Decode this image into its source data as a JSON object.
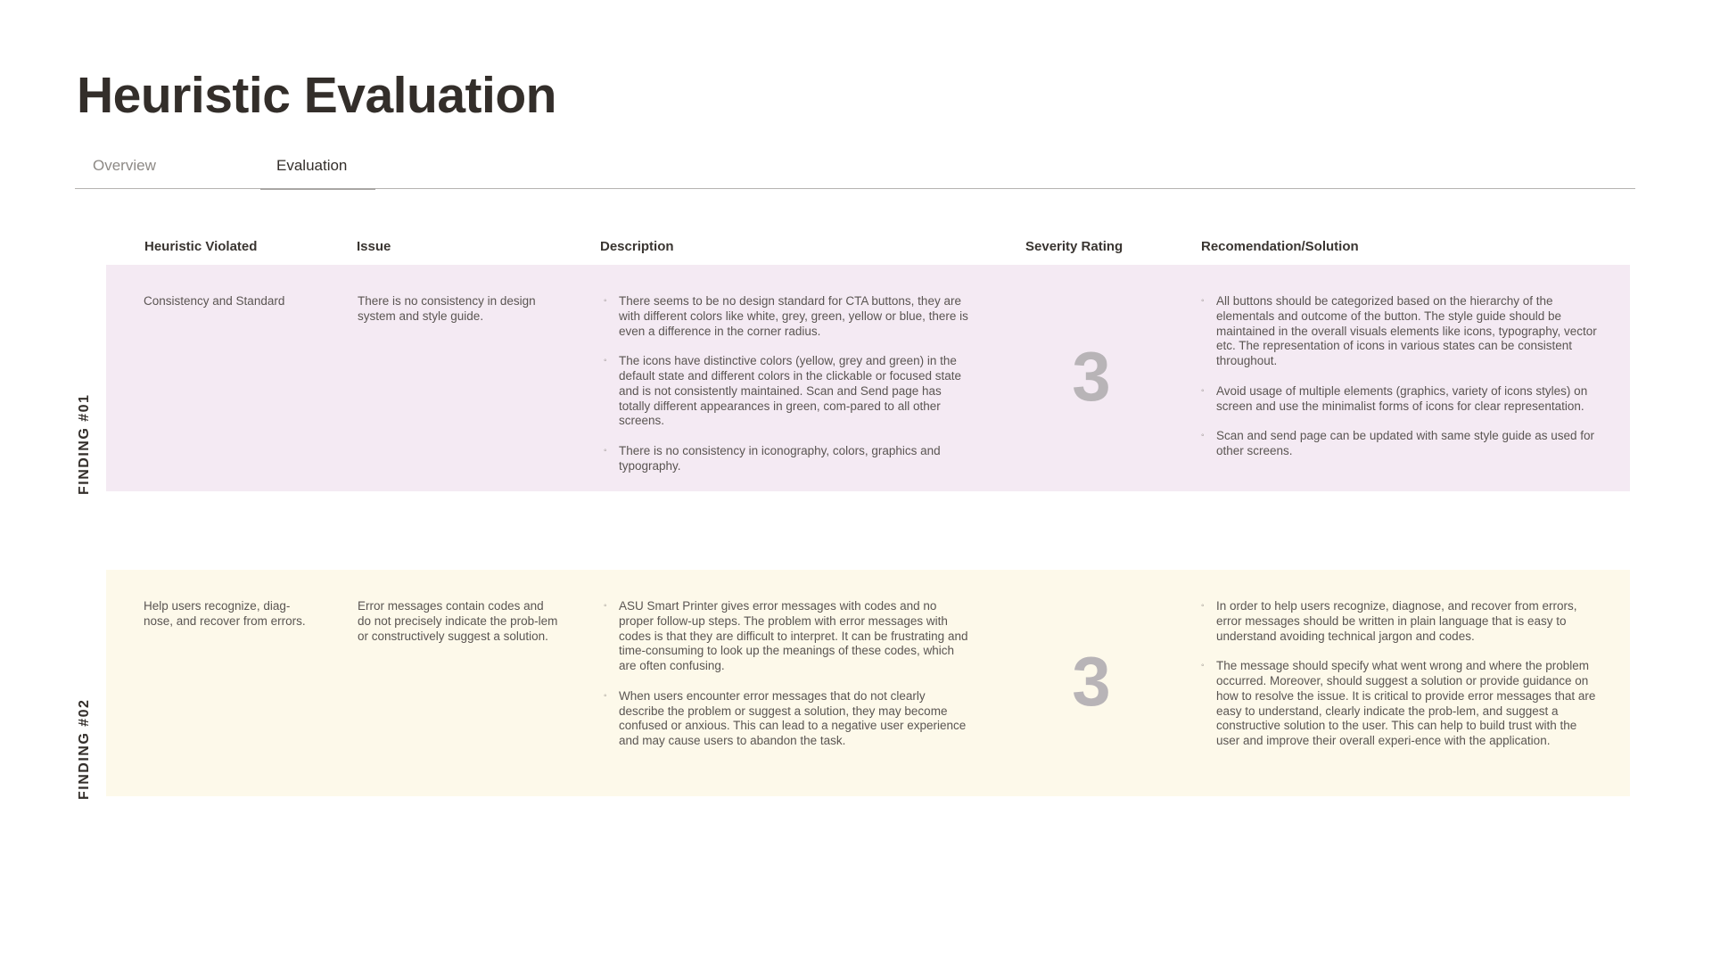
{
  "title": "Heuristic Evaluation",
  "tabs": [
    {
      "label": "Overview",
      "active": false
    },
    {
      "label": "Evaluation",
      "active": true
    }
  ],
  "columns": [
    "Heuristic Violated",
    "Issue",
    "Description",
    "Severity Rating",
    "Recomendation/Solution"
  ],
  "findings": [
    {
      "label": "FINDING #01",
      "background": "#f4eaf3",
      "heuristic": "Consistency and Standard",
      "issue": "There is no consistency in design system and style guide.",
      "description": [
        "There seems to be no design standard for CTA buttons, they are with different colors like white, grey, green, yellow or blue, there is even a difference in the corner radius.",
        "The icons have distinctive colors (yellow, grey and green) in the default state and different colors in the clickable or focused state and is not consistently maintained. Scan and Send page has totally different appearances in green, com-pared to all other screens.",
        "There is no consistency in iconography, colors, graphics and typography."
      ],
      "severity": "3",
      "recommendation": [
        "All buttons should be categorized based on the hierarchy of the elementals and outcome of the button. The style guide should be maintained in the overall visuals elements like icons, typography, vector etc. The representation of icons in various states can be consistent throughout.",
        "Avoid usage of multiple elements (graphics, variety of icons styles) on screen and use the minimalist forms of icons for clear representation.",
        "Scan and send page can be updated with same style guide as used for other screens."
      ]
    },
    {
      "label": "FINDING #02",
      "background": "#fdf9ea",
      "heuristic": "Help users recognize, diag-nose, and recover from errors.",
      "issue": "Error messages contain codes and do not precisely indicate the prob-lem or constructively suggest a solution.",
      "description": [
        "ASU Smart Printer gives error messages with codes and no proper follow-up steps. The problem with error messages with codes is that they are difficult to interpret. It can be frustrating and time-consuming to look up the meanings of these codes, which are often confusing.",
        "When users encounter error messages that do not clearly describe the problem or suggest a solution, they may become confused or anxious. This can lead to a negative user experience and may cause users to abandon the task."
      ],
      "severity": "3",
      "recommendation": [
        "In order to help users recognize, diagnose, and recover from errors, error messages should be written in plain language that is easy to understand avoiding technical jargon and codes.",
        "The message should specify what went wrong and where the problem occurred. Moreover, should suggest a solution or provide guidance on how to resolve the issue. It is critical to provide error messages that are easy to understand, clearly indicate the prob-lem, and suggest a constructive solution to the user. This can help to build trust with the user and improve their overall experi-ence with the application."
      ]
    }
  ]
}
